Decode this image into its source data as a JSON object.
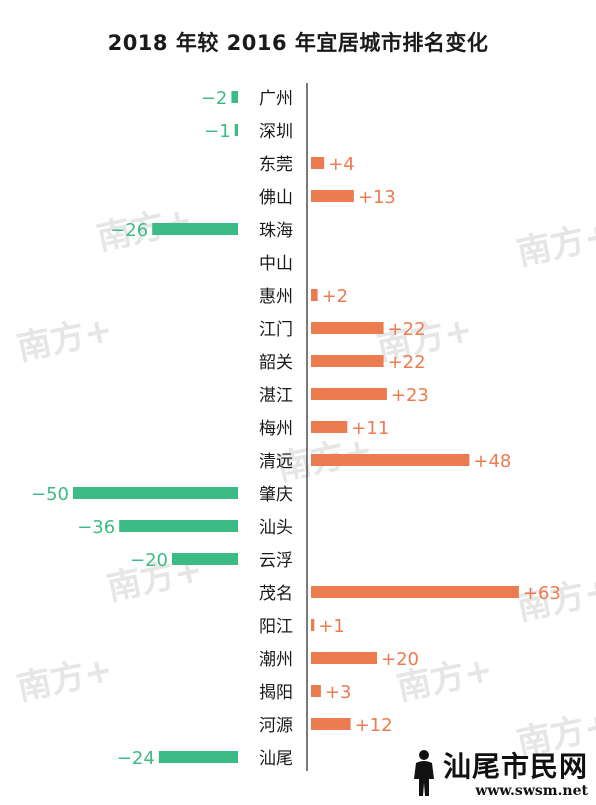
{
  "title": "2018 年较 2016 年宜居城市排名变化",
  "chart_data": {
    "type": "bar",
    "orientation": "horizontal",
    "title": "2018 年较 2016 年宜居城市排名变化",
    "categories": [
      "广州",
      "深圳",
      "东莞",
      "佛山",
      "珠海",
      "中山",
      "惠州",
      "江门",
      "韶关",
      "湛江",
      "梅州",
      "清远",
      "肇庆",
      "汕头",
      "云浮",
      "茂名",
      "阳江",
      "潮州",
      "揭阳",
      "河源",
      "汕尾"
    ],
    "values": [
      -2,
      -1,
      4,
      13,
      -26,
      0,
      2,
      22,
      22,
      23,
      11,
      48,
      -50,
      -36,
      -20,
      63,
      1,
      20,
      3,
      12,
      -24
    ],
    "labels": [
      "−2",
      "−1",
      "+4",
      "+13",
      "−26",
      "",
      "+2",
      "+22",
      "+22",
      "+23",
      "+11",
      "+48",
      "−50",
      "−36",
      "−20",
      "+63",
      "+1",
      "+20",
      "+3",
      "+12",
      "−24"
    ],
    "colors": {
      "negative": "#3dbb85",
      "positive": "#ec7b4f",
      "label_negative": "#3dbb85",
      "label_positive": "#ec7b4f",
      "axis": "#222222"
    },
    "grid": false,
    "legend": "none"
  },
  "watermark": {
    "text": "南方+"
  },
  "footer": {
    "brand": "汕尾市民网",
    "site": "www.swsm.net"
  }
}
